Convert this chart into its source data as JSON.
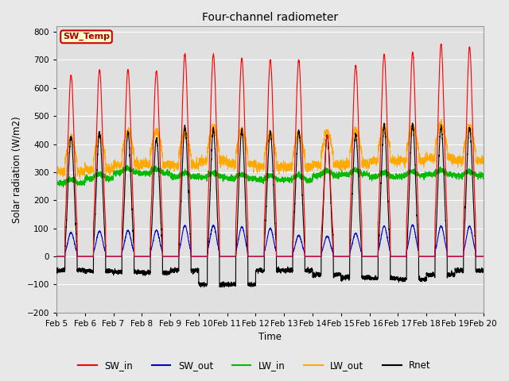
{
  "title": "Four-channel radiometer",
  "xlabel": "Time",
  "ylabel": "Solar radiation (W/m2)",
  "ylim": [
    -200,
    820
  ],
  "yticks": [
    -200,
    -100,
    0,
    100,
    200,
    300,
    400,
    500,
    600,
    700,
    800
  ],
  "x_labels": [
    "Feb 5",
    "Feb 6",
    "Feb 7",
    "Feb 8",
    "Feb 9",
    "Feb 10",
    "Feb 11",
    "Feb 12",
    "Feb 13",
    "Feb 14",
    "Feb 15",
    "Feb 16",
    "Feb 17",
    "Feb 18",
    "Feb 19",
    "Feb 20"
  ],
  "colors": {
    "SW_in": "#ff0000",
    "SW_out": "#0000cc",
    "LW_in": "#00bb00",
    "LW_out": "#ffaa00",
    "Rnet": "#000000"
  },
  "figure_bg": "#e8e8e8",
  "axes_bg": "#e0e0e0",
  "annotation_text": "SW_Temp",
  "annotation_bg": "#ffffcc",
  "annotation_border": "#cc0000",
  "n_days": 15,
  "pts_per_day": 288,
  "grid_color": "#ffffff",
  "sw_peaks": [
    645,
    665,
    665,
    660,
    720,
    720,
    705,
    700,
    700,
    430,
    680,
    720,
    725,
    755,
    745
  ],
  "sw_out_peaks": [
    85,
    90,
    92,
    93,
    110,
    110,
    105,
    100,
    75,
    72,
    82,
    108,
    112,
    108,
    108
  ],
  "lw_in_base": [
    260,
    278,
    298,
    296,
    284,
    282,
    278,
    274,
    273,
    289,
    292,
    283,
    288,
    292,
    288
  ],
  "lw_out_base": [
    300,
    310,
    328,
    328,
    325,
    340,
    330,
    320,
    318,
    325,
    330,
    340,
    342,
    350,
    340
  ],
  "rnet_night": [
    -50,
    -52,
    -55,
    -58,
    -50,
    -100,
    -100,
    -50,
    -50,
    -65,
    -75,
    -78,
    -82,
    -65,
    -50
  ],
  "rnet_peak": [
    425,
    440,
    440,
    420,
    460,
    450,
    450,
    445,
    445,
    430,
    435,
    465,
    470,
    460,
    460
  ]
}
